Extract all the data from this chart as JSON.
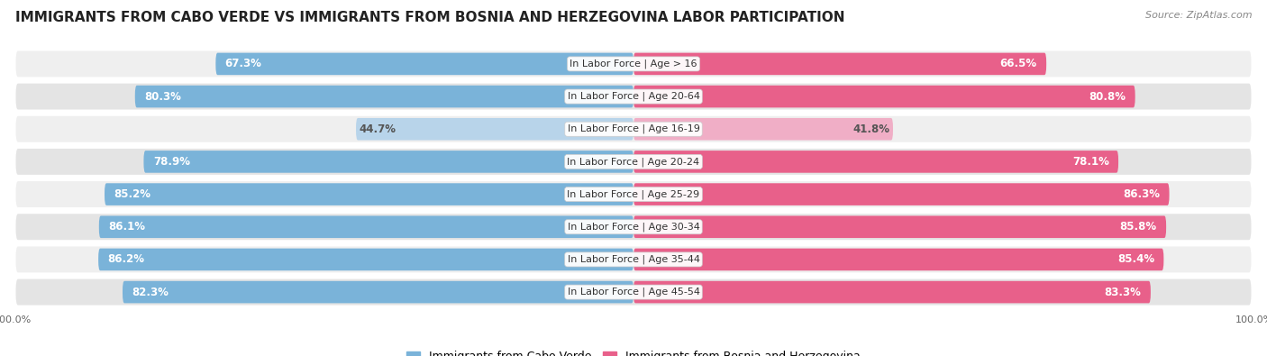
{
  "title": "IMMIGRANTS FROM CABO VERDE VS IMMIGRANTS FROM BOSNIA AND HERZEGOVINA LABOR PARTICIPATION",
  "source": "Source: ZipAtlas.com",
  "categories": [
    "In Labor Force | Age > 16",
    "In Labor Force | Age 20-64",
    "In Labor Force | Age 16-19",
    "In Labor Force | Age 20-24",
    "In Labor Force | Age 25-29",
    "In Labor Force | Age 30-34",
    "In Labor Force | Age 35-44",
    "In Labor Force | Age 45-54"
  ],
  "cabo_verde_values": [
    67.3,
    80.3,
    44.7,
    78.9,
    85.2,
    86.1,
    86.2,
    82.3
  ],
  "bosnia_values": [
    66.5,
    80.8,
    41.8,
    78.1,
    86.3,
    85.8,
    85.4,
    83.3
  ],
  "cabo_verde_color": "#7ab3d9",
  "cabo_verde_light_color": "#b8d4ea",
  "bosnia_color": "#e8608a",
  "bosnia_light_color": "#f0aec6",
  "row_bg_even": "#efefef",
  "row_bg_odd": "#e4e4e4",
  "label_white": "#ffffff",
  "label_dark": "#555555",
  "title_fontsize": 11,
  "source_fontsize": 8,
  "bar_label_fontsize": 8.5,
  "category_fontsize": 8,
  "legend_fontsize": 9,
  "max_value": 100.0
}
